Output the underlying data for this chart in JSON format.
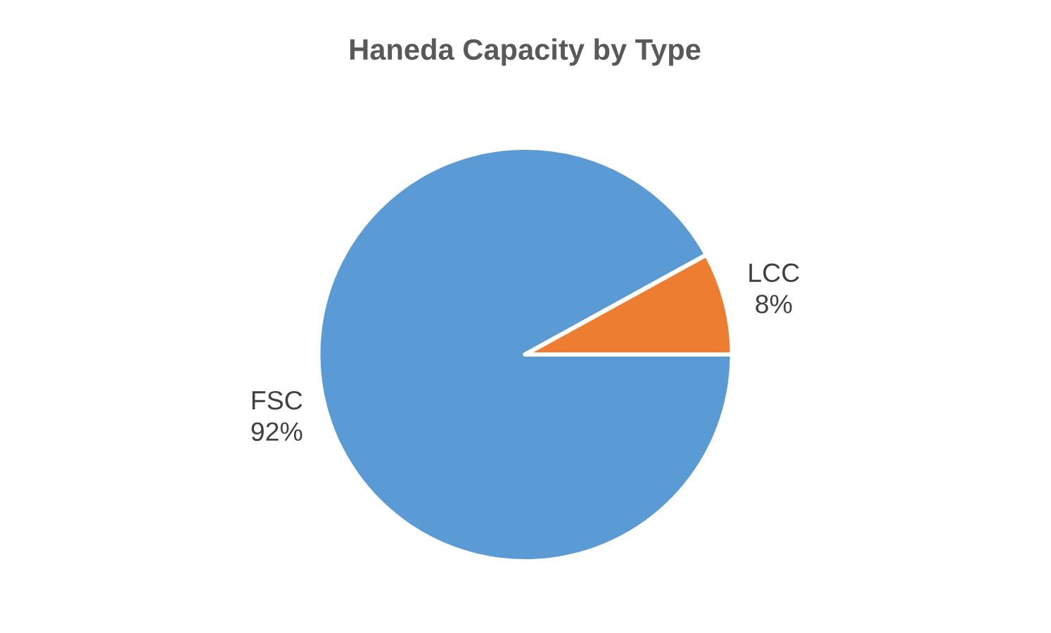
{
  "chart_data": {
    "type": "pie",
    "title": "Haneda Capacity by Type",
    "categories": [
      "FSC",
      "LCC"
    ],
    "values": [
      92,
      8
    ],
    "colors": [
      "#5b9bd5",
      "#ed7d31"
    ],
    "value_labels": [
      "92%",
      "8%"
    ]
  }
}
